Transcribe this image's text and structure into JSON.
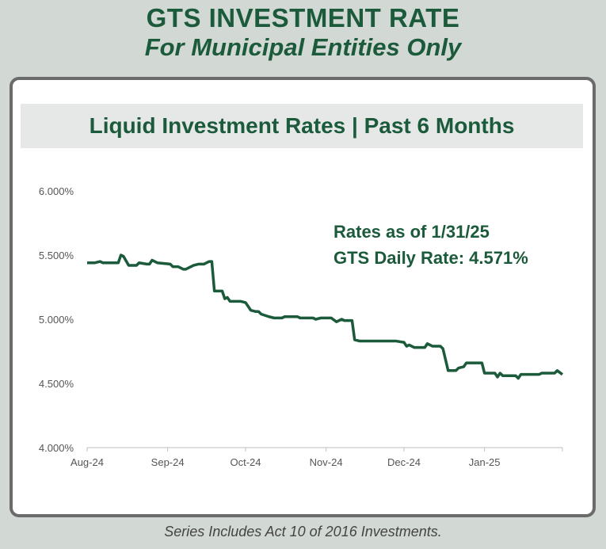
{
  "header": {
    "title": "GTS INVESTMENT RATE",
    "subtitle": "For Municipal Entities Only"
  },
  "footer": "Series Includes Act 10 of 2016 Investments.",
  "chart_data": {
    "type": "line",
    "title": "Liquid Investment Rates | Past 6 Months",
    "annotation": [
      "Rates as of 1/31/25",
      "GTS Daily Rate: 4.571%"
    ],
    "ylim": [
      4.0,
      6.0
    ],
    "yticks": [
      {
        "v": 4.0,
        "label": "4.000%"
      },
      {
        "v": 4.5,
        "label": "4.500%"
      },
      {
        "v": 5.0,
        "label": "5.000%"
      },
      {
        "v": 5.5,
        "label": "5.500%"
      },
      {
        "v": 6.0,
        "label": "6.000%"
      }
    ],
    "xlim": [
      0,
      183
    ],
    "xticks": [
      {
        "v": 0,
        "label": "Aug-24"
      },
      {
        "v": 31,
        "label": "Sep-24"
      },
      {
        "v": 61,
        "label": "Oct-24"
      },
      {
        "v": 92,
        "label": "Nov-24"
      },
      {
        "v": 122,
        "label": "Dec-24"
      },
      {
        "v": 153,
        "label": "Jan-25"
      },
      {
        "v": 183,
        "label": ""
      }
    ],
    "color": "#1b5a3a",
    "series": [
      {
        "name": "GTS Daily Rate",
        "points": [
          [
            0,
            5.44
          ],
          [
            3,
            5.44
          ],
          [
            5,
            5.45
          ],
          [
            6,
            5.44
          ],
          [
            12,
            5.44
          ],
          [
            13,
            5.5
          ],
          [
            14,
            5.49
          ],
          [
            16,
            5.42
          ],
          [
            19,
            5.42
          ],
          [
            20,
            5.44
          ],
          [
            23,
            5.43
          ],
          [
            24,
            5.43
          ],
          [
            25,
            5.46
          ],
          [
            27,
            5.44
          ],
          [
            32,
            5.43
          ],
          [
            33,
            5.41
          ],
          [
            35,
            5.41
          ],
          [
            37,
            5.39
          ],
          [
            38,
            5.39
          ],
          [
            40,
            5.41
          ],
          [
            41,
            5.42
          ],
          [
            43,
            5.43
          ],
          [
            45,
            5.43
          ],
          [
            47,
            5.45
          ],
          [
            48,
            5.45
          ],
          [
            49,
            5.22
          ],
          [
            52,
            5.22
          ],
          [
            53,
            5.16
          ],
          [
            54,
            5.17
          ],
          [
            55,
            5.14
          ],
          [
            59,
            5.14
          ],
          [
            61,
            5.13
          ],
          [
            63,
            5.07
          ],
          [
            65,
            5.06
          ],
          [
            66,
            5.06
          ],
          [
            67,
            5.04
          ],
          [
            70,
            5.02
          ],
          [
            72,
            5.01
          ],
          [
            75,
            5.01
          ],
          [
            76,
            5.02
          ],
          [
            81,
            5.02
          ],
          [
            82,
            5.01
          ],
          [
            87,
            5.01
          ],
          [
            88,
            5.0
          ],
          [
            90,
            5.01
          ],
          [
            94,
            5.01
          ],
          [
            96,
            4.98
          ],
          [
            98,
            5.0
          ],
          [
            99,
            4.99
          ],
          [
            102,
            4.99
          ],
          [
            103,
            4.84
          ],
          [
            105,
            4.83
          ],
          [
            119,
            4.83
          ],
          [
            122,
            4.82
          ],
          [
            123,
            4.79
          ],
          [
            124,
            4.8
          ],
          [
            126,
            4.78
          ],
          [
            130,
            4.78
          ],
          [
            131,
            4.81
          ],
          [
            133,
            4.79
          ],
          [
            136,
            4.79
          ],
          [
            137,
            4.77
          ],
          [
            139,
            4.6
          ],
          [
            142,
            4.6
          ],
          [
            143,
            4.62
          ],
          [
            145,
            4.63
          ],
          [
            146,
            4.66
          ],
          [
            152,
            4.66
          ],
          [
            153,
            4.58
          ],
          [
            157,
            4.58
          ],
          [
            158,
            4.55
          ],
          [
            159,
            4.58
          ],
          [
            160,
            4.56
          ],
          [
            165,
            4.56
          ],
          [
            166,
            4.54
          ],
          [
            167,
            4.57
          ],
          [
            174,
            4.57
          ],
          [
            175,
            4.58
          ],
          [
            180,
            4.58
          ],
          [
            181,
            4.6
          ],
          [
            183,
            4.57
          ]
        ]
      }
    ]
  }
}
